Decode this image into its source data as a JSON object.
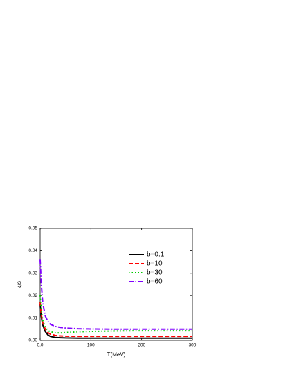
{
  "chart_data": {
    "type": "line",
    "xlabel": "T(MeV)",
    "ylabel": "ζ/s",
    "x": [
      0,
      2,
      5,
      10,
      15,
      20,
      30,
      40,
      50,
      75,
      100,
      150,
      200,
      250,
      300
    ],
    "series": [
      {
        "name": "b=0.1",
        "color": "#000000",
        "dash": "solid",
        "values": [
          0.016,
          0.011,
          0.007,
          0.004,
          0.0025,
          0.0018,
          0.0013,
          0.0012,
          0.0011,
          0.001,
          0.001,
          0.001,
          0.001,
          0.001,
          0.001
        ]
      },
      {
        "name": "b=10",
        "color": "#ff0000",
        "dash": "dash",
        "values": [
          0.017,
          0.012,
          0.008,
          0.005,
          0.0035,
          0.0028,
          0.0022,
          0.002,
          0.0019,
          0.0018,
          0.0018,
          0.0018,
          0.0018,
          0.0018,
          0.0018
        ]
      },
      {
        "name": "b=30",
        "color": "#00cc00",
        "dash": "dot",
        "values": [
          0.02,
          0.014,
          0.009,
          0.006,
          0.0045,
          0.0038,
          0.0034,
          0.0033,
          0.0035,
          0.0038,
          0.004,
          0.0042,
          0.0043,
          0.0043,
          0.0043
        ]
      },
      {
        "name": "b=60",
        "color": "#8000ff",
        "dash": "dashdot",
        "values": [
          0.036,
          0.026,
          0.017,
          0.011,
          0.0085,
          0.0072,
          0.0062,
          0.0058,
          0.0055,
          0.0052,
          0.0051,
          0.005,
          0.005,
          0.005,
          0.005
        ]
      }
    ],
    "xlim": [
      0,
      300
    ],
    "xticks": [
      {
        "value": 0,
        "label": "0.0"
      },
      100,
      200,
      300
    ],
    "ylim": [
      0,
      0.05
    ],
    "yticks": [
      {
        "value": 0,
        "label": "0.00"
      },
      0.01,
      0.02,
      0.03,
      0.04,
      0.05
    ],
    "legend": "upper right"
  }
}
